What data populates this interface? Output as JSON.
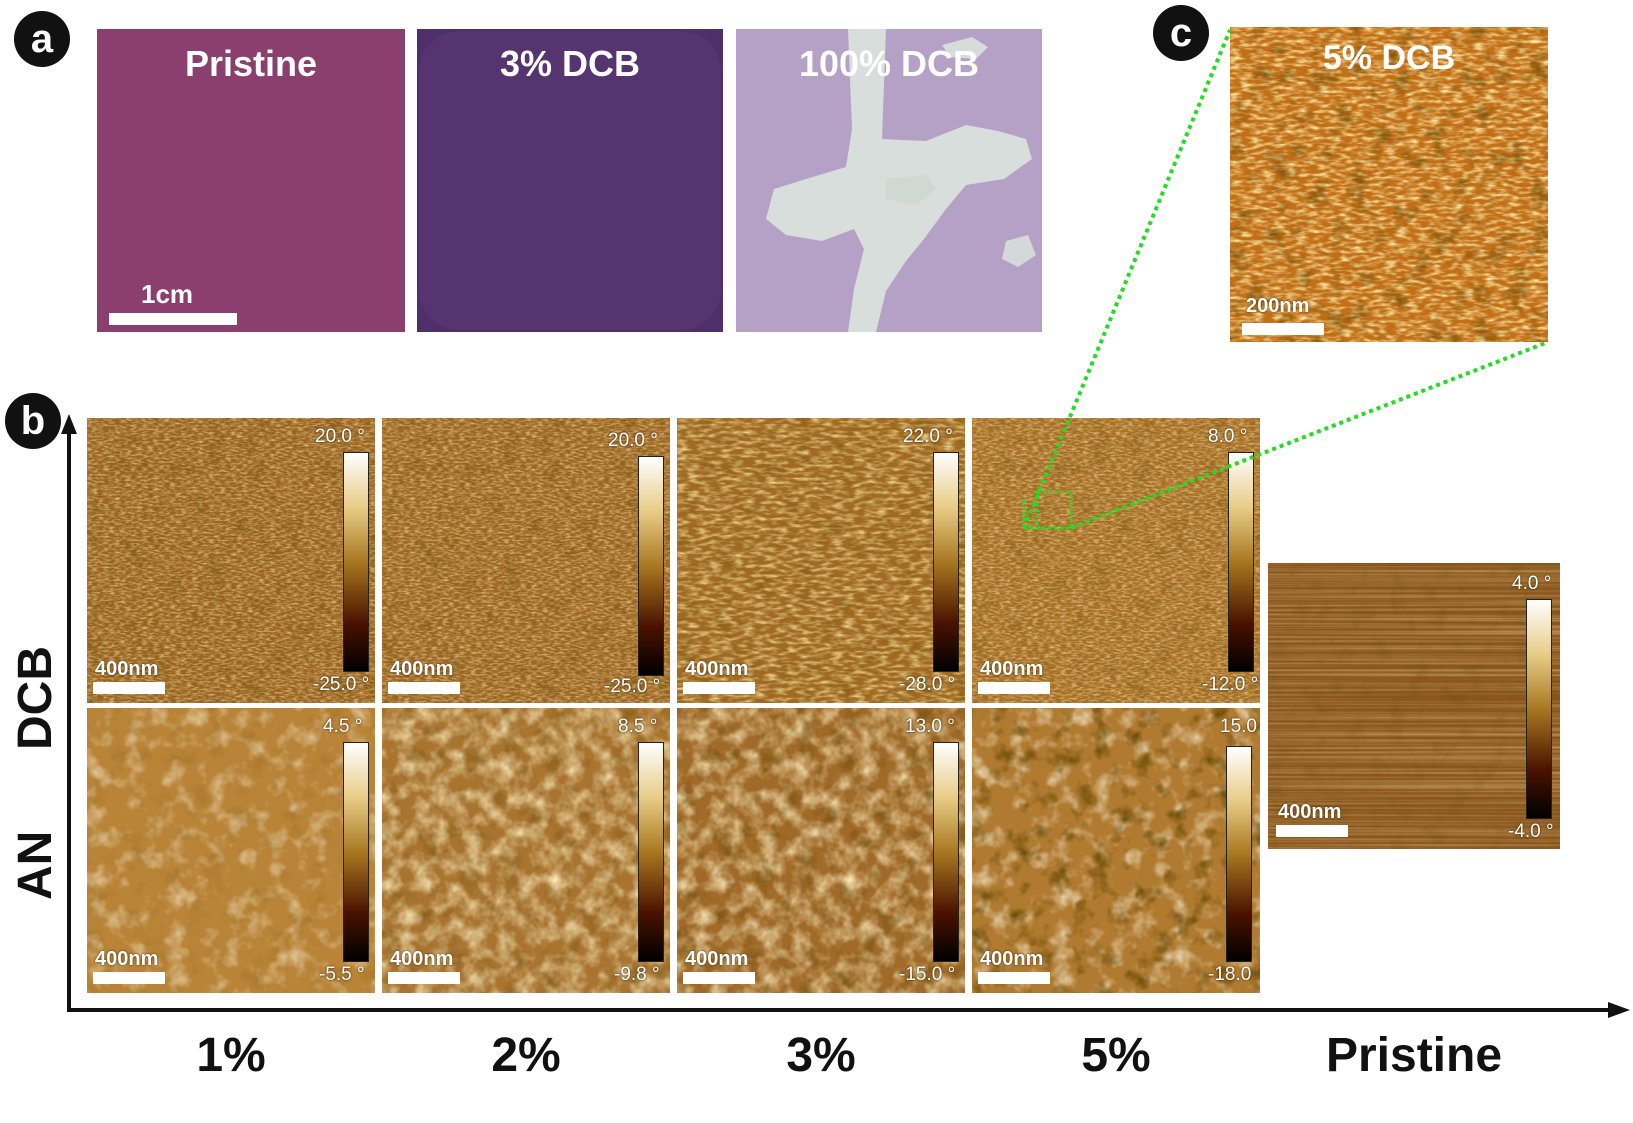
{
  "panel_letters": {
    "a": "a",
    "b": "b",
    "c": "c"
  },
  "panel_a": {
    "photos": [
      {
        "label": "Pristine"
      },
      {
        "label": "3% DCB"
      },
      {
        "label": "100% DCB"
      }
    ],
    "scale_label": "1cm"
  },
  "panel_b": {
    "row_labels": [
      "DCB",
      "AN"
    ],
    "column_labels": [
      "1%",
      "2%",
      "3%",
      "5%",
      "Pristine"
    ],
    "scale_label": "400nm",
    "dcb_row": [
      {
        "max": "20.0 °",
        "min": "-25.0 °"
      },
      {
        "max": "20.0 °",
        "min": "-25.0 °"
      },
      {
        "max": "22.0 °",
        "min": "-28.0 °"
      },
      {
        "max": "8.0 °",
        "min": "-12.0 °"
      }
    ],
    "an_row": [
      {
        "max": "4.5 °",
        "min": "-5.5 °"
      },
      {
        "max": "8.5 °",
        "min": "-9.8 °"
      },
      {
        "max": "13.0 °",
        "min": "-15.0 °"
      },
      {
        "max": "15.0",
        "min": "-18.0"
      }
    ],
    "pristine": {
      "max": "4.0 °",
      "min": "-4.0 °"
    }
  },
  "panel_c": {
    "label": "5% DCB",
    "scale_label": "200nm"
  },
  "colors": {
    "zoom_lines": "#22dd22",
    "afm_base": "#a06a22",
    "pristine_wafer": "#8a3f6e",
    "dcb3_wafer": "#4f2f6a",
    "dcb100_wafer": "#b5a0c6"
  }
}
